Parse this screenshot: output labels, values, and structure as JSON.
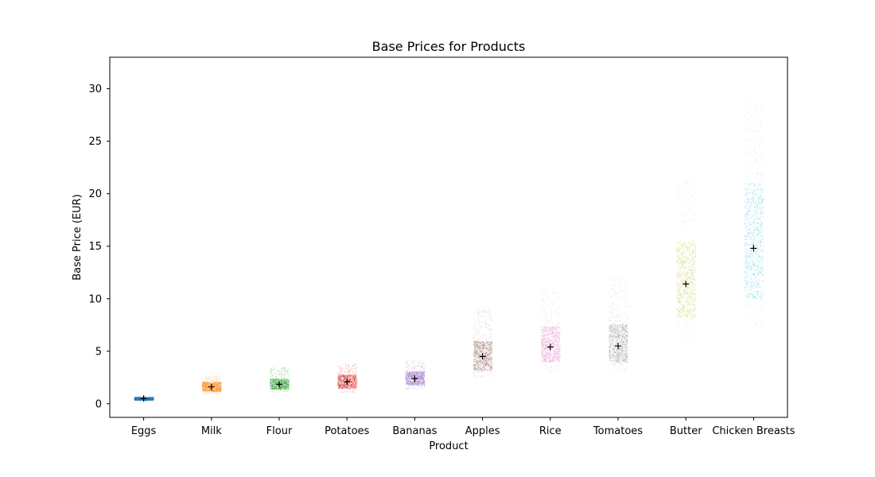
{
  "chart_data": {
    "type": "scatter",
    "title": "Base Prices for Products",
    "xlabel": "Product",
    "ylabel": "Base Price (EUR)",
    "categories": [
      "Eggs",
      "Milk",
      "Flour",
      "Potatoes",
      "Bananas",
      "Apples",
      "Rice",
      "Tomatoes",
      "Butter",
      "Chicken Breasts"
    ],
    "series": [
      {
        "category": "Eggs",
        "color": "#1f77b4",
        "mean": 0.5,
        "min": 0.3,
        "max": 0.7,
        "core_low": 0.35,
        "core_high": 0.65
      },
      {
        "category": "Milk",
        "color": "#ff7f0e",
        "mean": 1.6,
        "min": 0.9,
        "max": 2.7,
        "core_low": 1.2,
        "core_high": 2.1
      },
      {
        "category": "Flour",
        "color": "#2ca02c",
        "mean": 1.85,
        "min": 1.1,
        "max": 3.5,
        "core_low": 1.4,
        "core_high": 2.4
      },
      {
        "category": "Potatoes",
        "color": "#d62728",
        "mean": 2.1,
        "min": 1.1,
        "max": 3.8,
        "core_low": 1.5,
        "core_high": 2.8
      },
      {
        "category": "Bananas",
        "color": "#9467bd",
        "mean": 2.4,
        "min": 1.4,
        "max": 4.2,
        "core_low": 1.8,
        "core_high": 3.1
      },
      {
        "category": "Apples",
        "color": "#8c564b",
        "mean": 4.5,
        "min": 2.5,
        "max": 9.0,
        "core_low": 3.2,
        "core_high": 6.0
      },
      {
        "category": "Rice",
        "color": "#e377c2",
        "mean": 5.4,
        "min": 3.0,
        "max": 11.0,
        "core_low": 4.0,
        "core_high": 7.4
      },
      {
        "category": "Tomatoes",
        "color": "#7f7f7f",
        "mean": 5.5,
        "min": 3.0,
        "max": 12.0,
        "core_low": 4.0,
        "core_high": 7.6
      },
      {
        "category": "Butter",
        "color": "#bcbd22",
        "mean": 11.4,
        "min": 6.0,
        "max": 21.5,
        "core_low": 8.2,
        "core_high": 15.5
      },
      {
        "category": "Chicken Breasts",
        "color": "#17becf",
        "mean": 14.8,
        "min": 7.5,
        "max": 29.0,
        "core_low": 10.0,
        "core_high": 21.0
      }
    ],
    "ylim": [
      -1.3,
      33.0
    ],
    "yticks": [
      0,
      5,
      10,
      15,
      20,
      25,
      30
    ],
    "mean_marker": "+",
    "grid": false,
    "legend": "none"
  }
}
